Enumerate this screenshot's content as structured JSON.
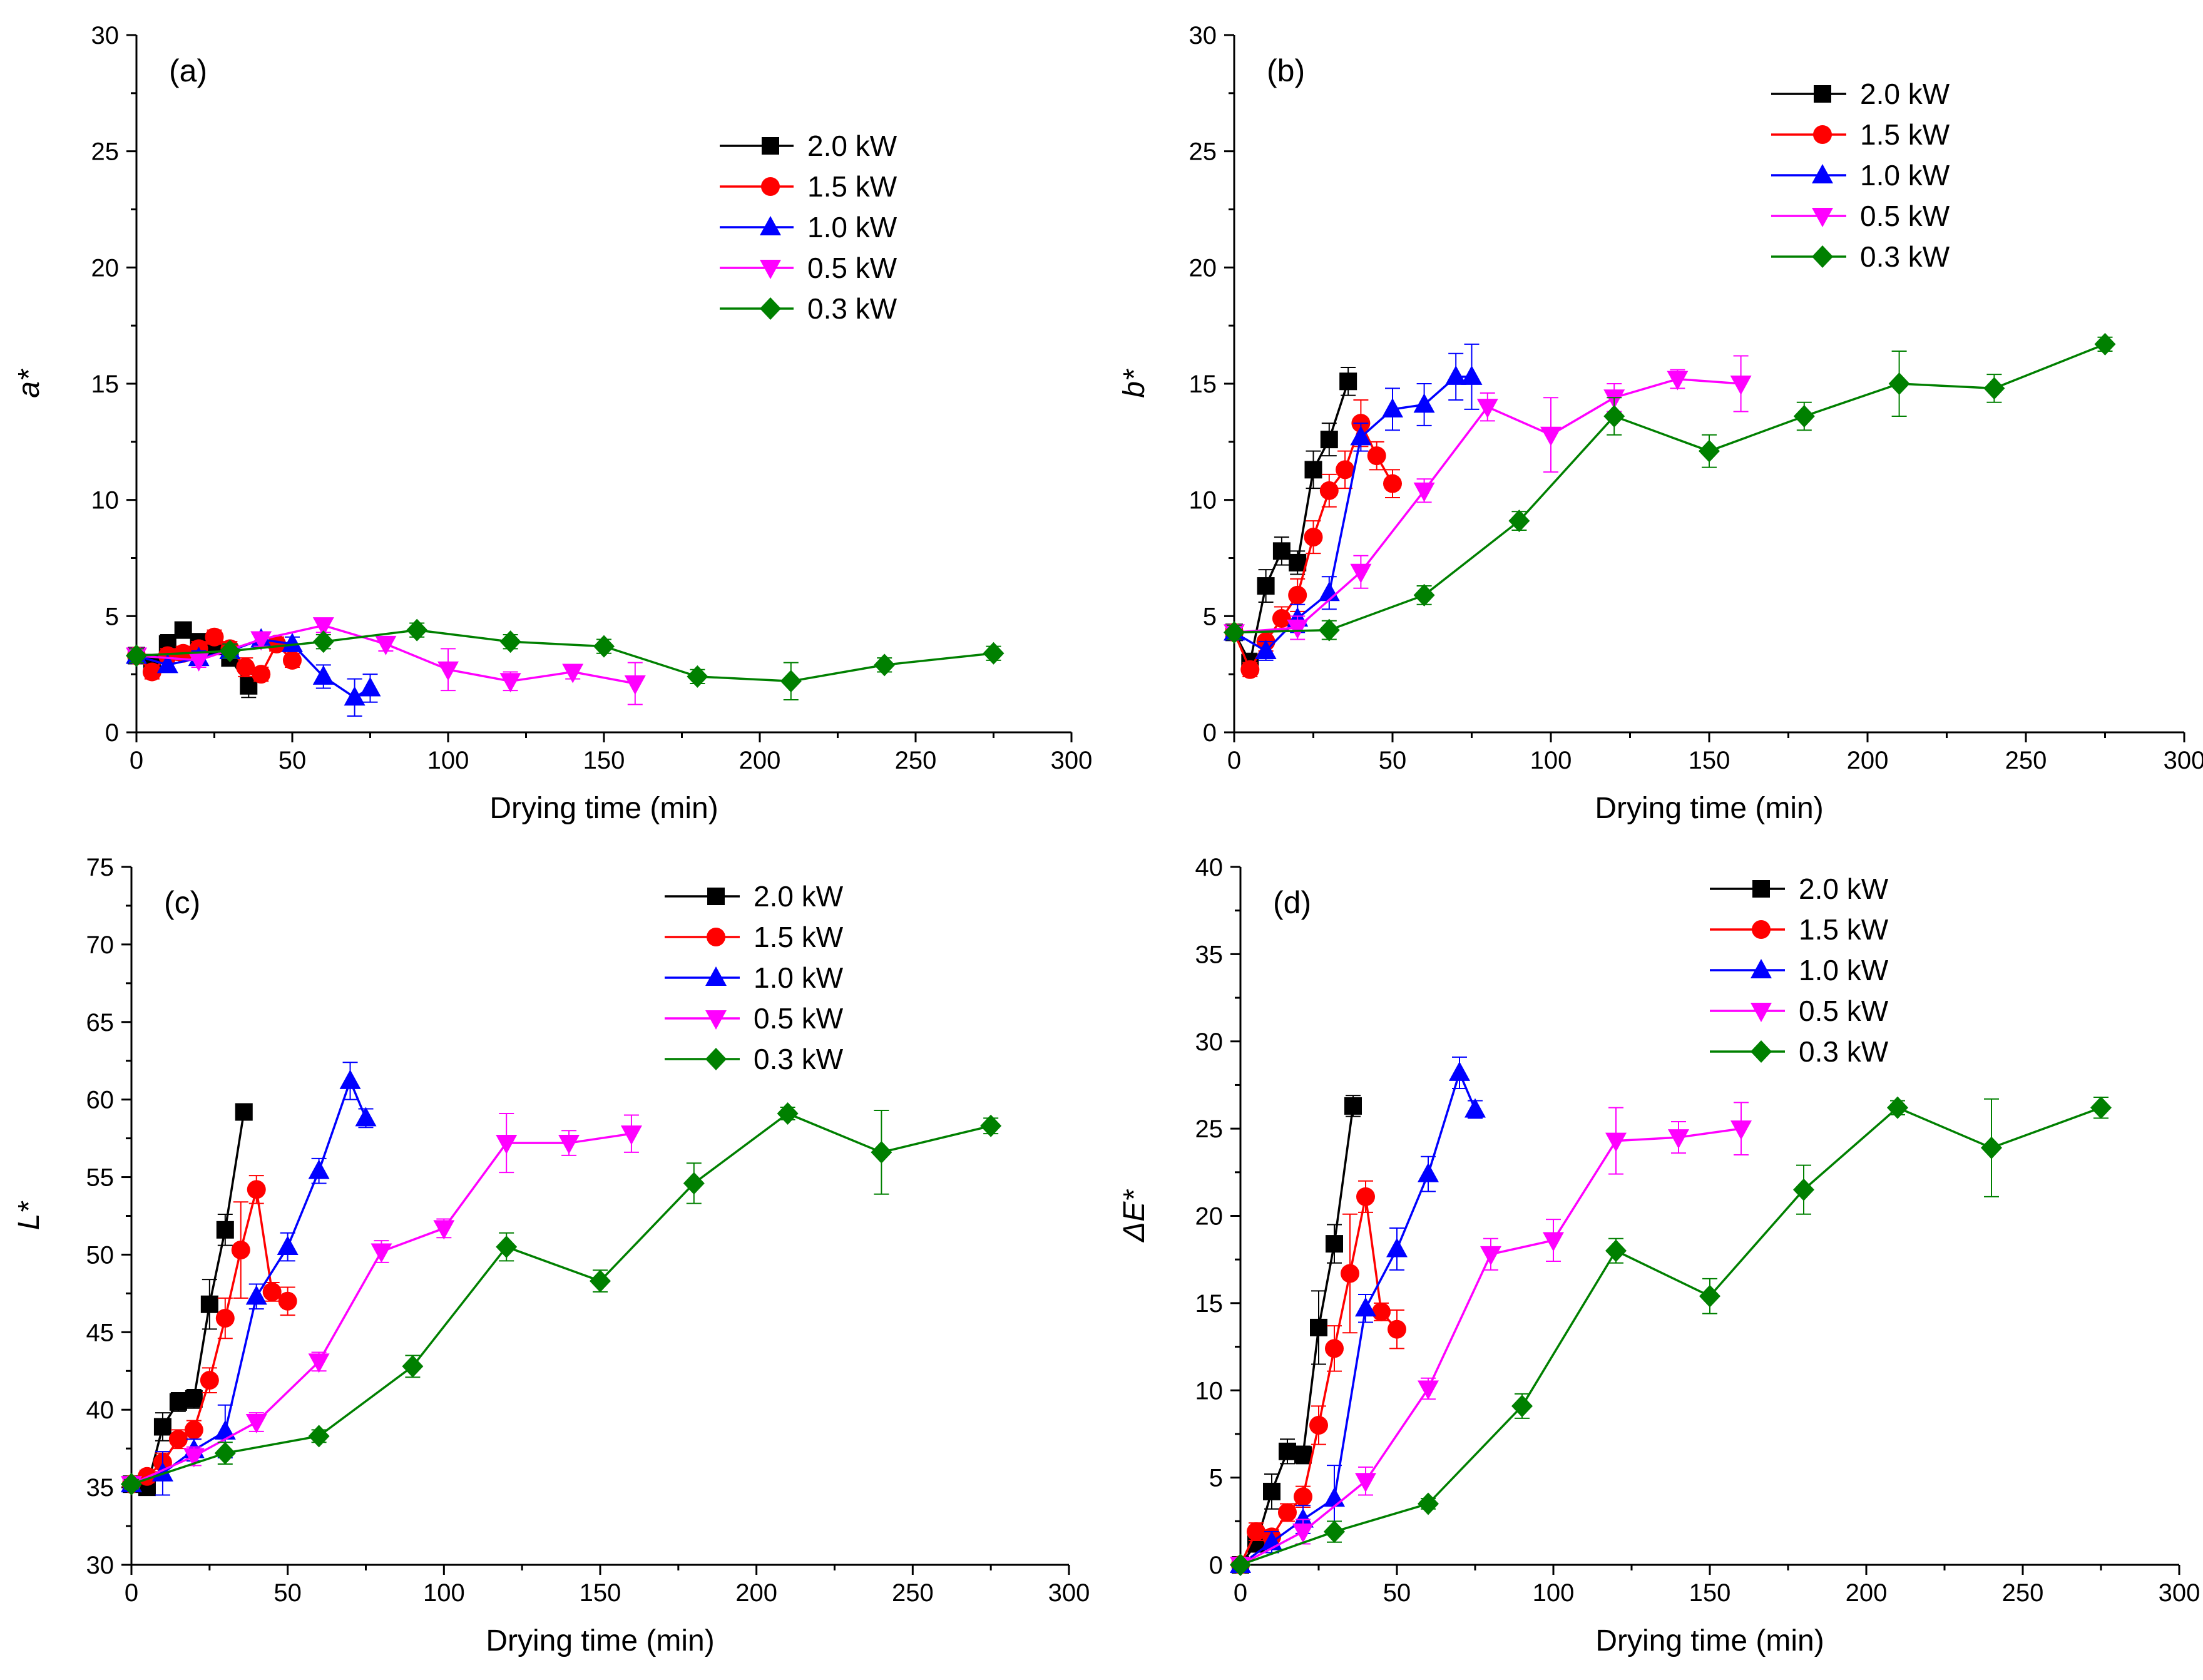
{
  "figure": {
    "colors": {
      "2.0 kW": "#000000",
      "1.5 kW": "#ff0000",
      "1.0 kW": "#0000ff",
      "0.5 kW": "#ff00ff",
      "0.3 kW": "#008000"
    },
    "markers": {
      "2.0 kW": "square",
      "1.5 kW": "circle",
      "1.0 kW": "triangle-up",
      "0.5 kW": "triangle-down",
      "0.3 kW": "diamond"
    }
  },
  "chart_data": [
    {
      "type": "line",
      "panel": "(a)",
      "xlabel": "Drying time (min)",
      "ylabel": "a*",
      "xlim": [
        0,
        300
      ],
      "ylim": [
        0,
        30
      ],
      "xticks": [
        0,
        50,
        100,
        150,
        200,
        250,
        300
      ],
      "yticks": [
        0,
        5,
        10,
        15,
        20,
        25,
        30
      ],
      "legend": [
        "2.0 kW",
        "1.5 kW",
        "1.0 kW",
        "0.5 kW",
        "0.3 kW"
      ],
      "series": [
        {
          "name": "2.0 kW",
          "x": [
            0,
            5,
            10,
            15,
            20,
            25,
            30,
            36
          ],
          "y": [
            3.3,
            3.0,
            3.8,
            4.4,
            3.9,
            3.7,
            3.2,
            2.0
          ],
          "err": [
            0.3,
            0.3,
            0.4,
            0.3,
            0.3,
            0.3,
            0.3,
            0.5
          ]
        },
        {
          "name": "1.5 kW",
          "x": [
            0,
            5,
            10,
            15,
            20,
            25,
            30,
            35,
            40,
            45,
            50
          ],
          "y": [
            3.3,
            2.6,
            3.3,
            3.4,
            3.6,
            4.1,
            3.6,
            2.8,
            2.5,
            3.8,
            3.1
          ],
          "err": [
            0.3,
            0.3,
            0.3,
            0.3,
            0.3,
            0.3,
            0.3,
            0.4,
            0.3,
            0.3,
            0.3
          ]
        },
        {
          "name": "1.0 kW",
          "x": [
            0,
            10,
            20,
            30,
            40,
            50,
            60,
            70,
            75
          ],
          "y": [
            3.3,
            2.9,
            3.2,
            3.5,
            4.0,
            3.8,
            2.4,
            1.5,
            1.9
          ],
          "err": [
            0.3,
            0.3,
            0.3,
            0.3,
            0.3,
            0.3,
            0.5,
            0.8,
            0.6
          ]
        },
        {
          "name": "0.5 kW",
          "x": [
            0,
            20,
            40,
            60,
            80,
            100,
            120,
            140,
            160
          ],
          "y": [
            3.3,
            3.1,
            4.0,
            4.6,
            3.8,
            2.7,
            2.2,
            2.6,
            2.1
          ],
          "err": [
            0.3,
            0.3,
            0.3,
            0.3,
            0.3,
            0.9,
            0.4,
            0.3,
            0.9
          ]
        },
        {
          "name": "0.3 kW",
          "x": [
            0,
            30,
            60,
            90,
            120,
            150,
            180,
            210,
            240,
            275
          ],
          "y": [
            3.3,
            3.5,
            3.9,
            4.4,
            3.9,
            3.7,
            2.4,
            2.2,
            2.9,
            3.4
          ],
          "err": [
            0.3,
            0.3,
            0.3,
            0.3,
            0.3,
            0.3,
            0.3,
            0.8,
            0.3,
            0.3
          ]
        }
      ]
    },
    {
      "type": "line",
      "panel": "(b)",
      "xlabel": "Drying time (min)",
      "ylabel": "b*",
      "xlim": [
        0,
        300
      ],
      "ylim": [
        0,
        30
      ],
      "xticks": [
        0,
        50,
        100,
        150,
        200,
        250,
        300
      ],
      "yticks": [
        0,
        5,
        10,
        15,
        20,
        25,
        30
      ],
      "legend": [
        "2.0 kW",
        "1.5 kW",
        "1.0 kW",
        "0.5 kW",
        "0.3 kW"
      ],
      "series": [
        {
          "name": "2.0 kW",
          "x": [
            0,
            5,
            10,
            15,
            20,
            25,
            30,
            36
          ],
          "y": [
            4.3,
            3.0,
            6.3,
            7.8,
            7.3,
            11.3,
            12.6,
            15.1
          ],
          "err": [
            0.3,
            0.4,
            0.7,
            0.6,
            0.5,
            0.8,
            0.7,
            0.6
          ]
        },
        {
          "name": "1.5 kW",
          "x": [
            0,
            5,
            10,
            15,
            20,
            25,
            30,
            35,
            40,
            45,
            50
          ],
          "y": [
            4.3,
            2.7,
            3.9,
            4.9,
            5.9,
            8.4,
            10.4,
            11.3,
            13.3,
            11.9,
            10.7
          ],
          "err": [
            0.3,
            0.3,
            0.4,
            0.5,
            0.7,
            0.7,
            0.7,
            0.8,
            1.0,
            0.6,
            0.6
          ]
        },
        {
          "name": "1.0 kW",
          "x": [
            0,
            10,
            20,
            30,
            40,
            50,
            60,
            70,
            75
          ],
          "y": [
            4.3,
            3.5,
            4.9,
            6.0,
            12.7,
            13.9,
            14.1,
            15.3,
            15.3
          ],
          "err": [
            0.3,
            0.4,
            0.6,
            0.7,
            0.6,
            0.9,
            0.9,
            1.0,
            1.4
          ]
        },
        {
          "name": "0.5 kW",
          "x": [
            0,
            20,
            40,
            60,
            80,
            100,
            120,
            140,
            160
          ],
          "y": [
            4.3,
            4.5,
            6.9,
            10.4,
            14.0,
            12.8,
            14.4,
            15.2,
            15.0
          ],
          "err": [
            0.3,
            0.5,
            0.7,
            0.5,
            0.6,
            1.6,
            0.6,
            0.4,
            1.2
          ]
        },
        {
          "name": "0.3 kW",
          "x": [
            0,
            30,
            60,
            90,
            120,
            150,
            180,
            210,
            240,
            275
          ],
          "y": [
            4.3,
            4.4,
            5.9,
            9.1,
            13.6,
            12.1,
            13.6,
            15.0,
            14.8,
            16.7
          ],
          "err": [
            0.3,
            0.4,
            0.4,
            0.4,
            0.8,
            0.7,
            0.6,
            1.4,
            0.6,
            0.3
          ]
        }
      ]
    },
    {
      "type": "line",
      "panel": "(c)",
      "xlabel": "Drying time (min)",
      "ylabel": "L*",
      "xlim": [
        0,
        300
      ],
      "ylim": [
        30,
        75
      ],
      "xticks": [
        0,
        50,
        100,
        150,
        200,
        250,
        300
      ],
      "yticks": [
        30,
        35,
        40,
        45,
        50,
        55,
        60,
        65,
        70,
        75
      ],
      "legend": [
        "2.0 kW",
        "1.5 kW",
        "1.0 kW",
        "0.5 kW",
        "0.3 kW"
      ],
      "series": [
        {
          "name": "2.0 kW",
          "x": [
            0,
            5,
            10,
            15,
            20,
            25,
            30,
            36
          ],
          "y": [
            35.2,
            35.0,
            38.9,
            40.5,
            40.7,
            46.8,
            51.6,
            59.2
          ],
          "err": [
            0.3,
            0.4,
            0.9,
            0.6,
            0.6,
            1.6,
            1.0,
            0.5
          ]
        },
        {
          "name": "1.5 kW",
          "x": [
            0,
            5,
            10,
            15,
            20,
            25,
            30,
            35,
            40,
            45,
            50
          ],
          "y": [
            35.2,
            35.7,
            36.6,
            38.1,
            38.7,
            41.9,
            45.9,
            50.3,
            54.2,
            47.6,
            47.0
          ],
          "err": [
            0.3,
            0.4,
            0.6,
            0.6,
            0.6,
            0.8,
            1.3,
            3.1,
            0.9,
            0.6,
            0.9
          ]
        },
        {
          "name": "1.0 kW",
          "x": [
            0,
            10,
            20,
            30,
            40,
            50,
            60,
            70,
            75
          ],
          "y": [
            35.2,
            35.9,
            37.4,
            38.6,
            47.3,
            50.5,
            55.4,
            61.2,
            58.8
          ],
          "err": [
            0.3,
            1.4,
            0.7,
            1.7,
            0.8,
            0.9,
            0.8,
            1.2,
            0.6
          ]
        },
        {
          "name": "0.5 kW",
          "x": [
            0,
            20,
            40,
            60,
            80,
            100,
            120,
            140,
            160
          ],
          "y": [
            35.2,
            37.0,
            39.2,
            43.1,
            50.2,
            51.7,
            57.2,
            57.2,
            57.8
          ],
          "err": [
            0.3,
            0.6,
            0.6,
            0.6,
            0.7,
            0.6,
            1.9,
            0.8,
            1.2
          ]
        },
        {
          "name": "0.3 kW",
          "x": [
            0,
            30,
            60,
            90,
            120,
            150,
            180,
            210,
            240,
            275
          ],
          "y": [
            35.2,
            37.2,
            38.3,
            42.8,
            50.5,
            48.3,
            54.6,
            59.1,
            56.6,
            58.3
          ],
          "err": [
            0.3,
            0.7,
            0.4,
            0.7,
            0.9,
            0.7,
            1.3,
            0.4,
            2.7,
            0.5
          ]
        }
      ]
    },
    {
      "type": "line",
      "panel": "(d)",
      "xlabel": "Drying time (min)",
      "ylabel": "ΔE*",
      "xlim": [
        0,
        300
      ],
      "ylim": [
        0,
        40
      ],
      "xticks": [
        0,
        50,
        100,
        150,
        200,
        250,
        300
      ],
      "yticks": [
        0,
        5,
        10,
        15,
        20,
        25,
        30,
        35,
        40
      ],
      "legend": [
        "2.0 kW",
        "1.5 kW",
        "1.0 kW",
        "0.5 kW",
        "0.3 kW"
      ],
      "series": [
        {
          "name": "2.0 kW",
          "x": [
            0,
            5,
            10,
            15,
            20,
            25,
            30,
            36
          ],
          "y": [
            0,
            1.2,
            4.2,
            6.5,
            6.3,
            13.6,
            18.4,
            26.3
          ],
          "err": [
            0,
            0.4,
            1.0,
            0.7,
            0.5,
            2.1,
            1.1,
            0.6
          ]
        },
        {
          "name": "1.5 kW",
          "x": [
            0,
            5,
            10,
            15,
            20,
            25,
            30,
            35,
            40,
            45,
            50
          ],
          "y": [
            0,
            1.9,
            1.6,
            3.0,
            3.9,
            8.0,
            12.4,
            16.7,
            21.1,
            14.5,
            13.5
          ],
          "err": [
            0,
            0.5,
            0.4,
            0.5,
            0.6,
            1.1,
            1.3,
            3.4,
            0.9,
            0.5,
            1.1
          ]
        },
        {
          "name": "1.0 kW",
          "x": [
            0,
            10,
            20,
            30,
            40,
            50,
            60,
            70,
            75
          ],
          "y": [
            0,
            1.3,
            2.6,
            3.8,
            14.7,
            18.1,
            22.4,
            28.2,
            26.1
          ],
          "err": [
            0,
            0.6,
            0.8,
            1.9,
            0.8,
            1.2,
            1.0,
            0.9,
            0.5
          ]
        },
        {
          "name": "0.5 kW",
          "x": [
            0,
            20,
            40,
            60,
            80,
            100,
            120,
            140,
            160
          ],
          "y": [
            0,
            1.9,
            4.8,
            10.1,
            17.8,
            18.6,
            24.3,
            24.5,
            25.0
          ],
          "err": [
            0,
            0.7,
            0.8,
            0.6,
            0.9,
            1.2,
            1.9,
            0.9,
            1.5
          ]
        },
        {
          "name": "0.3 kW",
          "x": [
            0,
            30,
            60,
            90,
            120,
            150,
            180,
            210,
            240,
            275
          ],
          "y": [
            0,
            1.9,
            3.5,
            9.1,
            18.0,
            15.4,
            21.5,
            26.2,
            23.9,
            26.2
          ],
          "err": [
            0,
            0.6,
            0.3,
            0.7,
            0.7,
            1.0,
            1.4,
            0.4,
            2.8,
            0.6
          ]
        }
      ]
    }
  ]
}
